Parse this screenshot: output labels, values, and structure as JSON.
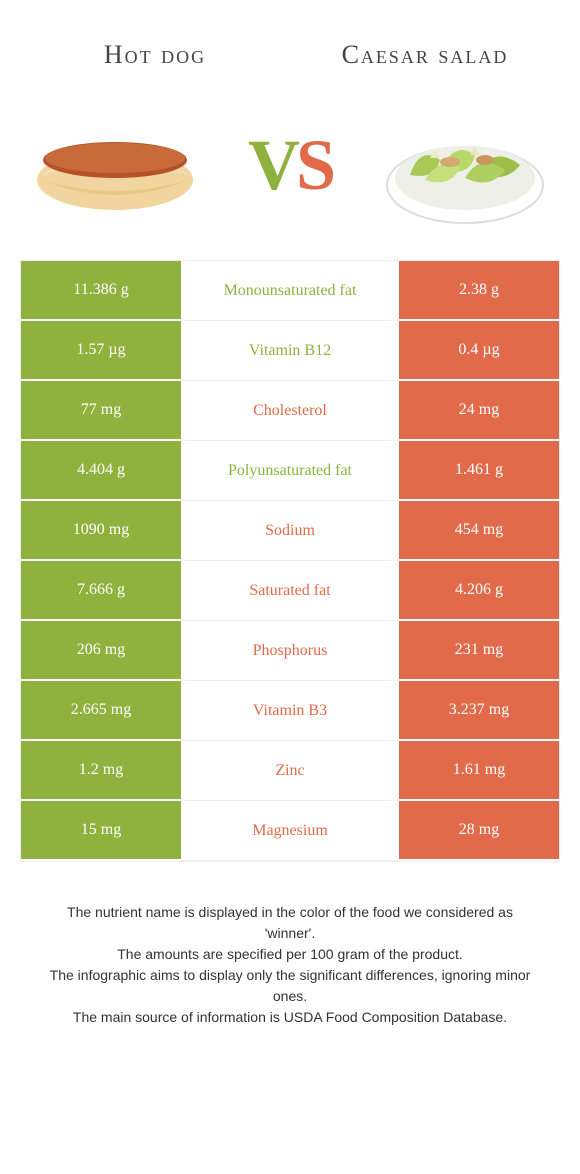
{
  "food_left": {
    "name": "Hot dog",
    "color": "#8fb23e"
  },
  "food_right": {
    "name": "Caesar salad",
    "color": "#e06a4a"
  },
  "vs_text": {
    "v": "V",
    "s": "S"
  },
  "rows": [
    {
      "left": "11.386 g",
      "label": "Monounsaturated fat",
      "right": "2.38 g",
      "winner": "left"
    },
    {
      "left": "1.57 µg",
      "label": "Vitamin B12",
      "right": "0.4 µg",
      "winner": "left"
    },
    {
      "left": "77 mg",
      "label": "Cholesterol",
      "right": "24 mg",
      "winner": "right"
    },
    {
      "left": "4.404 g",
      "label": "Polyunsaturated fat",
      "right": "1.461 g",
      "winner": "left"
    },
    {
      "left": "1090 mg",
      "label": "Sodium",
      "right": "454 mg",
      "winner": "right"
    },
    {
      "left": "7.666 g",
      "label": "Saturated fat",
      "right": "4.206 g",
      "winner": "right"
    },
    {
      "left": "206 mg",
      "label": "Phosphorus",
      "right": "231 mg",
      "winner": "right"
    },
    {
      "left": "2.665 mg",
      "label": "Vitamin B3",
      "right": "3.237 mg",
      "winner": "right"
    },
    {
      "left": "1.2 mg",
      "label": "Zinc",
      "right": "1.61 mg",
      "winner": "right"
    },
    {
      "left": "15 mg",
      "label": "Magnesium",
      "right": "28 mg",
      "winner": "right"
    }
  ],
  "footer_lines": [
    "The nutrient name is displayed in the color of the food we considered as 'winner'.",
    "The amounts are specified per 100 gram of the product.",
    "The infographic aims to display only the significant differences, ignoring minor ones.",
    "The main source of information is USDA Food Composition Database."
  ]
}
